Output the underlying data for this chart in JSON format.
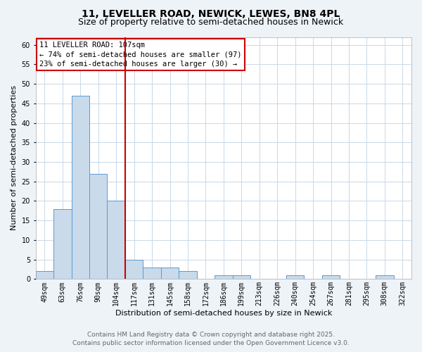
{
  "title": "11, LEVELLER ROAD, NEWICK, LEWES, BN8 4PL",
  "subtitle": "Size of property relative to semi-detached houses in Newick",
  "xlabel": "Distribution of semi-detached houses by size in Newick",
  "ylabel": "Number of semi-detached properties",
  "bins": [
    "49sqm",
    "63sqm",
    "76sqm",
    "90sqm",
    "104sqm",
    "117sqm",
    "131sqm",
    "145sqm",
    "158sqm",
    "172sqm",
    "186sqm",
    "199sqm",
    "213sqm",
    "226sqm",
    "240sqm",
    "254sqm",
    "267sqm",
    "281sqm",
    "295sqm",
    "308sqm",
    "322sqm"
  ],
  "counts": [
    2,
    18,
    47,
    27,
    20,
    5,
    3,
    3,
    2,
    0,
    1,
    1,
    0,
    0,
    1,
    0,
    1,
    0,
    0,
    1,
    0
  ],
  "bar_color": "#c9daea",
  "bar_edge_color": "#5b9bd5",
  "vline_bin_index": 4,
  "vline_color": "#cc0000",
  "annotation_title": "11 LEVELLER ROAD: 107sqm",
  "annotation_line1": "← 74% of semi-detached houses are smaller (97)",
  "annotation_line2": "23% of semi-detached houses are larger (30) →",
  "annotation_box_color": "#cc0000",
  "ylim": [
    0,
    62
  ],
  "yticks": [
    0,
    5,
    10,
    15,
    20,
    25,
    30,
    35,
    40,
    45,
    50,
    55,
    60
  ],
  "footer_line1": "Contains HM Land Registry data © Crown copyright and database right 2025.",
  "footer_line2": "Contains public sector information licensed under the Open Government Licence v3.0.",
  "bg_color": "#eef3f8",
  "plot_bg_color": "#ffffff",
  "title_fontsize": 10,
  "subtitle_fontsize": 9,
  "axis_label_fontsize": 8,
  "tick_fontsize": 7,
  "footer_fontsize": 6.5,
  "annotation_fontsize": 7.5
}
